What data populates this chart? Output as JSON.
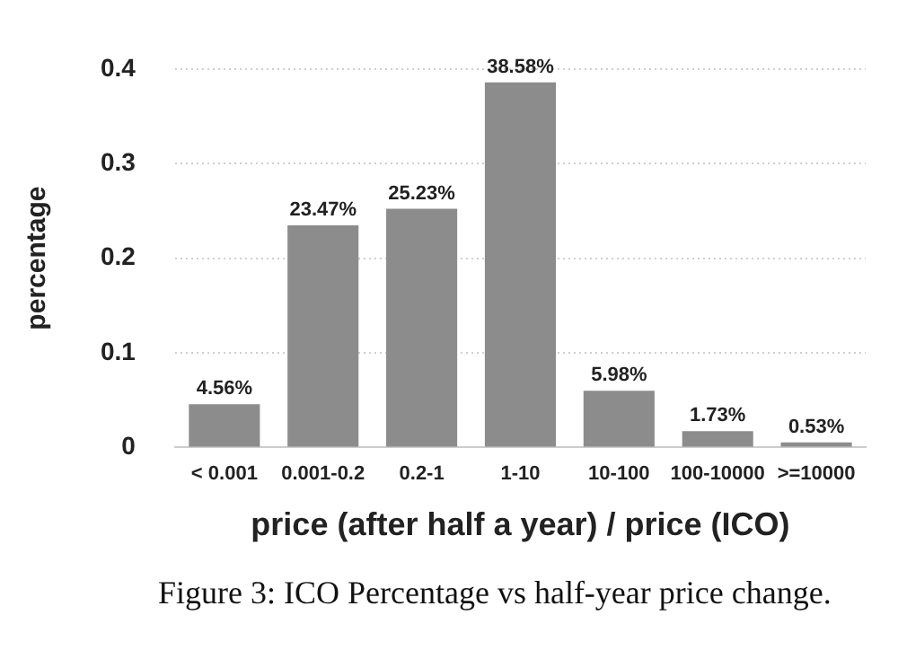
{
  "chart_data": {
    "type": "bar",
    "xlabel": "price (after half a year) / price (ICO)",
    "ylabel": "percentage",
    "categories": [
      "< 0.001",
      "0.001-0.2",
      "0.2-1",
      "1-10",
      "10-100",
      "100-10000",
      ">=10000"
    ],
    "values": [
      0.0456,
      0.2347,
      0.2523,
      0.3858,
      0.0598,
      0.0173,
      0.0053
    ],
    "value_labels": [
      "4.56%",
      "23.47%",
      "25.23%",
      "38.58%",
      "5.98%",
      "1.73%",
      "0.53%"
    ],
    "color": "#8c8c8c",
    "ylim": [
      0,
      0.4
    ],
    "yticks": [
      0,
      0.1,
      0.2,
      0.3,
      0.4
    ],
    "grid": "y",
    "legend": false,
    "annotations": [
      "Figure 3: ICO Percentage vs half-year price change."
    ]
  }
}
